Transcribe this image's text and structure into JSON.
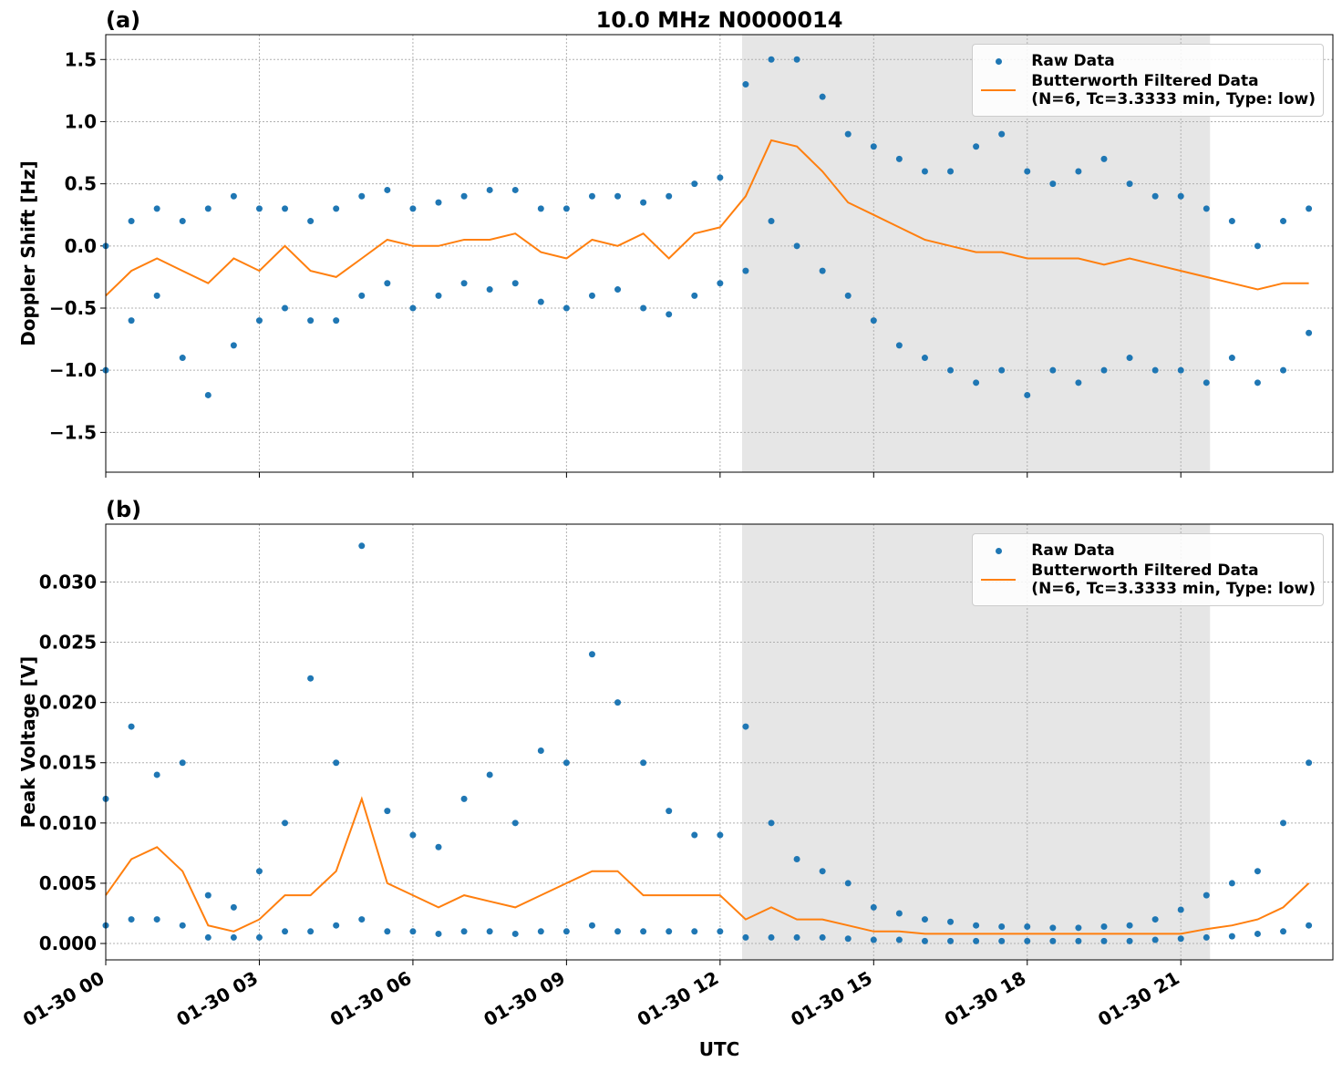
{
  "chart_data": [
    {
      "type": "scatter",
      "title": "10.0 MHz N0000014",
      "panel_label": "(a)",
      "ylabel": "Doppler Shift [Hz]",
      "xlim": [
        0,
        23.97
      ],
      "xticks": [
        0,
        3,
        6,
        9,
        12,
        15,
        18,
        21
      ],
      "ylim": [
        -1.82,
        1.7
      ],
      "yticks": [
        {
          "value": 1.5,
          "label": "1.5"
        },
        {
          "value": 1,
          "label": "1.0"
        },
        {
          "value": 0.5,
          "label": "0.5"
        },
        {
          "value": 0,
          "label": "0.0"
        },
        {
          "value": -0.5,
          "label": "−0.5"
        },
        {
          "value": -1,
          "label": "−1.0"
        },
        {
          "value": -1.5,
          "label": "−1.5"
        }
      ],
      "grid": true,
      "legend": "upper right",
      "shaded_span": [
        12.43,
        21.57
      ],
      "shade_color": "#e6e6e6",
      "series": [
        {
          "name": "Raw Data",
          "type": "scatter",
          "color": "#1f77b4",
          "x": [
            0,
            0,
            0.5,
            0.5,
            1,
            1,
            1.5,
            1.5,
            2,
            2,
            2.5,
            2.5,
            3,
            3,
            3.5,
            3.5,
            4,
            4,
            4.5,
            4.5,
            5,
            5,
            5.5,
            5.5,
            6,
            6,
            6.5,
            6.5,
            7,
            7,
            7.5,
            7.5,
            8,
            8,
            8.5,
            8.5,
            9,
            9,
            9.5,
            9.5,
            10,
            10,
            10.5,
            10.5,
            11,
            11,
            11.5,
            11.5,
            12,
            12,
            12.5,
            12.5,
            13,
            13,
            13.5,
            13.5,
            14,
            14,
            14.5,
            14.5,
            15,
            15,
            15.5,
            15.5,
            16,
            16,
            16.5,
            16.5,
            17,
            17,
            17.5,
            17.5,
            18,
            18,
            18.5,
            18.5,
            19,
            19,
            19.5,
            19.5,
            20,
            20,
            20.5,
            20.5,
            21,
            21,
            21.5,
            21.5,
            22,
            22,
            22.5,
            22.5,
            23,
            23,
            23.5,
            23.5
          ],
          "values": [
            0.0,
            -1.0,
            0.2,
            -0.6,
            0.3,
            -0.4,
            0.2,
            -0.9,
            0.3,
            -1.2,
            0.4,
            -0.8,
            0.3,
            -0.6,
            0.3,
            -0.5,
            0.2,
            -0.6,
            0.3,
            -0.6,
            0.4,
            -0.4,
            0.45,
            -0.3,
            0.3,
            -0.5,
            0.35,
            -0.4,
            0.4,
            -0.3,
            0.45,
            -0.35,
            0.45,
            -0.3,
            0.3,
            -0.45,
            0.3,
            -0.5,
            0.4,
            -0.4,
            0.4,
            -0.35,
            0.35,
            -0.5,
            0.4,
            -0.55,
            0.5,
            -0.4,
            0.55,
            -0.3,
            1.3,
            -0.2,
            1.5,
            0.2,
            1.5,
            0.0,
            1.2,
            -0.2,
            0.9,
            -0.4,
            0.8,
            -0.6,
            0.7,
            -0.8,
            0.6,
            -0.9,
            0.6,
            -1.0,
            0.8,
            -1.1,
            0.9,
            -1.0,
            0.6,
            -1.2,
            0.5,
            -1.0,
            0.6,
            -1.1,
            0.7,
            -1.0,
            0.5,
            -0.9,
            0.4,
            -1.0,
            0.4,
            -1.0,
            0.3,
            -1.1,
            0.2,
            -0.9,
            0.0,
            -1.1,
            0.2,
            -1.0,
            0.3,
            -0.7
          ]
        },
        {
          "name": "Butterworth Filtered Data\n(N=6, Tc=3.3333 min, Type: low)",
          "type": "line",
          "color": "#ff7f0e",
          "x": [
            0,
            0.5,
            1,
            1.5,
            2,
            2.5,
            3,
            3.5,
            4,
            4.5,
            5,
            5.5,
            6,
            6.5,
            7,
            7.5,
            8,
            8.5,
            9,
            9.5,
            10,
            10.5,
            11,
            11.5,
            12,
            12.5,
            13,
            13.5,
            14,
            14.5,
            15,
            15.5,
            16,
            16.5,
            17,
            17.5,
            18,
            18.5,
            19,
            19.5,
            20,
            20.5,
            21,
            21.5,
            22,
            22.5,
            23,
            23.5
          ],
          "values": [
            -0.4,
            -0.2,
            -0.1,
            -0.2,
            -0.3,
            -0.1,
            -0.2,
            0.0,
            -0.2,
            -0.25,
            -0.1,
            0.05,
            0.0,
            0.0,
            0.05,
            0.05,
            0.1,
            -0.05,
            -0.1,
            0.05,
            0.0,
            0.1,
            -0.1,
            0.1,
            0.15,
            0.4,
            0.85,
            0.8,
            0.6,
            0.35,
            0.25,
            0.15,
            0.05,
            0.0,
            -0.05,
            -0.05,
            -0.1,
            -0.1,
            -0.1,
            -0.15,
            -0.1,
            -0.15,
            -0.2,
            -0.25,
            -0.3,
            -0.35,
            -0.3,
            -0.3
          ]
        }
      ]
    },
    {
      "type": "scatter",
      "panel_label": "(b)",
      "ylabel": "Peak Voltage [V]",
      "xlabel": "UTC",
      "xlim": [
        0,
        23.97
      ],
      "xticks": [
        {
          "value": 0,
          "label": "01-30 00"
        },
        {
          "value": 3,
          "label": "01-30 03"
        },
        {
          "value": 6,
          "label": "01-30 06"
        },
        {
          "value": 9,
          "label": "01-30 09"
        },
        {
          "value": 12,
          "label": "01-30 12"
        },
        {
          "value": 15,
          "label": "01-30 15"
        },
        {
          "value": 18,
          "label": "01-30 18"
        },
        {
          "value": 21,
          "label": "01-30 21"
        }
      ],
      "ylim": [
        -0.00136,
        0.0348
      ],
      "yticks": [
        {
          "value": 0.03,
          "label": "0.030"
        },
        {
          "value": 0.025,
          "label": "0.025"
        },
        {
          "value": 0.02,
          "label": "0.020"
        },
        {
          "value": 0.015,
          "label": "0.015"
        },
        {
          "value": 0.01,
          "label": "0.010"
        },
        {
          "value": 0.005,
          "label": "0.005"
        },
        {
          "value": 0,
          "label": "0.000"
        }
      ],
      "grid": true,
      "legend": "upper right",
      "shaded_span": [
        12.43,
        21.57
      ],
      "shade_color": "#e6e6e6",
      "series": [
        {
          "name": "Raw Data",
          "type": "scatter",
          "color": "#1f77b4",
          "x": [
            0,
            0,
            0.5,
            0.5,
            1,
            1,
            1.5,
            1.5,
            2,
            2,
            2.5,
            2.5,
            3,
            3,
            3.5,
            3.5,
            4,
            4,
            4.5,
            4.5,
            5,
            5,
            5.5,
            5.5,
            6,
            6,
            6.5,
            6.5,
            7,
            7,
            7.5,
            7.5,
            8,
            8,
            8.5,
            8.5,
            9,
            9,
            9.5,
            9.5,
            10,
            10,
            10.5,
            10.5,
            11,
            11,
            11.5,
            11.5,
            12,
            12,
            12.5,
            12.5,
            13,
            13,
            13.5,
            13.5,
            14,
            14,
            14.5,
            14.5,
            15,
            15,
            15.5,
            15.5,
            16,
            16,
            16.5,
            16.5,
            17,
            17,
            17.5,
            17.5,
            18,
            18,
            18.5,
            18.5,
            19,
            19,
            19.5,
            19.5,
            20,
            20,
            20.5,
            20.5,
            21,
            21,
            21.5,
            21.5,
            22,
            22,
            22.5,
            22.5,
            23,
            23,
            23.5,
            23.5
          ],
          "values": [
            0.012,
            0.0015,
            0.018,
            0.002,
            0.014,
            0.002,
            0.015,
            0.0015,
            0.004,
            0.0005,
            0.003,
            0.0005,
            0.006,
            0.0005,
            0.01,
            0.001,
            0.022,
            0.001,
            0.015,
            0.0015,
            0.033,
            0.002,
            0.011,
            0.001,
            0.009,
            0.001,
            0.008,
            0.0008,
            0.012,
            0.001,
            0.014,
            0.001,
            0.01,
            0.0008,
            0.016,
            0.001,
            0.015,
            0.001,
            0.024,
            0.0015,
            0.02,
            0.001,
            0.015,
            0.001,
            0.011,
            0.001,
            0.009,
            0.001,
            0.009,
            0.001,
            0.018,
            0.0005,
            0.01,
            0.0005,
            0.007,
            0.0005,
            0.006,
            0.0005,
            0.005,
            0.0004,
            0.003,
            0.0003,
            0.0025,
            0.0003,
            0.002,
            0.0002,
            0.0018,
            0.0002,
            0.0015,
            0.0002,
            0.0014,
            0.0002,
            0.0014,
            0.0002,
            0.0013,
            0.0002,
            0.0013,
            0.0002,
            0.0014,
            0.0002,
            0.0015,
            0.0002,
            0.002,
            0.0003,
            0.0028,
            0.0004,
            0.004,
            0.0005,
            0.005,
            0.0006,
            0.006,
            0.0008,
            0.01,
            0.001,
            0.015,
            0.0015
          ]
        },
        {
          "name": "Butterworth Filtered Data\n(N=6, Tc=3.3333 min, Type: low)",
          "type": "line",
          "color": "#ff7f0e",
          "x": [
            0,
            0.5,
            1,
            1.5,
            2,
            2.5,
            3,
            3.5,
            4,
            4.5,
            5,
            5.5,
            6,
            6.5,
            7,
            7.5,
            8,
            8.5,
            9,
            9.5,
            10,
            10.5,
            11,
            11.5,
            12,
            12.5,
            13,
            13.5,
            14,
            14.5,
            15,
            15.5,
            16,
            16.5,
            17,
            17.5,
            18,
            18.5,
            19,
            19.5,
            20,
            20.5,
            21,
            21.5,
            22,
            22.5,
            23,
            23.5
          ],
          "values": [
            0.004,
            0.007,
            0.008,
            0.006,
            0.0015,
            0.001,
            0.002,
            0.004,
            0.004,
            0.006,
            0.012,
            0.005,
            0.004,
            0.003,
            0.004,
            0.0035,
            0.003,
            0.004,
            0.005,
            0.006,
            0.006,
            0.004,
            0.004,
            0.004,
            0.004,
            0.002,
            0.003,
            0.002,
            0.002,
            0.0015,
            0.001,
            0.001,
            0.0008,
            0.0008,
            0.0008,
            0.0008,
            0.0008,
            0.0008,
            0.0008,
            0.0008,
            0.0008,
            0.0008,
            0.0008,
            0.0012,
            0.0015,
            0.002,
            0.003,
            0.005
          ]
        }
      ]
    }
  ]
}
